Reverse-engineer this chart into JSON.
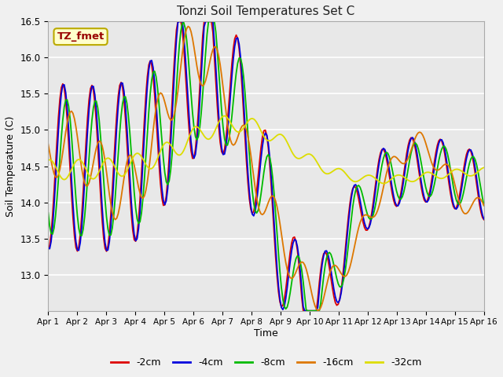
{
  "title": "Tonzi Soil Temperatures Set C",
  "xlabel": "Time",
  "ylabel": "Soil Temperature (C)",
  "ylim": [
    12.5,
    16.5
  ],
  "xlim": [
    0,
    15
  ],
  "xtick_labels": [
    "Apr 1",
    "Apr 2",
    "Apr 3",
    "Apr 4",
    "Apr 5",
    "Apr 6",
    "Apr 7",
    "Apr 8",
    "Apr 9",
    "Apr 10",
    "Apr 11",
    "Apr 12",
    "Apr 13",
    "Apr 14",
    "Apr 15",
    "Apr 16"
  ],
  "ytick_values": [
    13.0,
    13.5,
    14.0,
    14.5,
    15.0,
    15.5,
    16.0,
    16.5
  ],
  "colors": {
    "-2cm": "#dd0000",
    "-4cm": "#0000dd",
    "-8cm": "#00bb00",
    "-16cm": "#dd7700",
    "-32cm": "#dddd00"
  },
  "legend_label": "TZ_fmet",
  "legend_bg": "#ffffcc",
  "legend_border": "#bbaa00",
  "plot_bg": "#e8e8e8",
  "fig_bg": "#f0f0f0",
  "grid_color": "#ffffff",
  "n_points": 300
}
